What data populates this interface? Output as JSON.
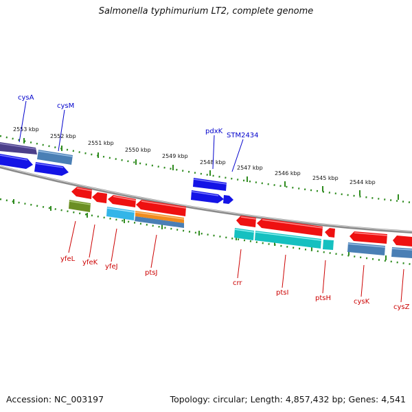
{
  "title": "Salmonella typhimurium LT2, complete genome",
  "footer": {
    "accession": "Accession: NC_003197",
    "summary": "Topology: circular; Length: 4,857,432 bp; Genes: 4,541"
  },
  "scale_labels": [
    "2553 kbp",
    "2552 kbp",
    "2551 kbp",
    "2550 kbp",
    "2549 kbp",
    "2548 kbp",
    "2547 kbp",
    "2546 kbp",
    "2545 kbp",
    "2544 kbp"
  ],
  "forward_labels": [
    "cysA",
    "cysM",
    "pdxK",
    "STM2434"
  ],
  "reverse_labels": [
    "yfeL",
    "yfeK",
    "yfeJ",
    "ptsJ",
    "crr",
    "ptsI",
    "ptsH",
    "cysK",
    "cysZ"
  ],
  "colors": {
    "backbone": "#8a8a8a",
    "ticks": "#2e8b1e",
    "forward_label": "#0000cc",
    "reverse_label": "#cc0000",
    "blue_gene": "#1414e6",
    "red_gene": "#ee1111",
    "steel": "#4a7fb5",
    "purple": "#4b3f8a",
    "cyan": "#15c0c0",
    "sky": "#33b5e8",
    "orange": "#f08c1e",
    "olive": "#6b8e23"
  }
}
